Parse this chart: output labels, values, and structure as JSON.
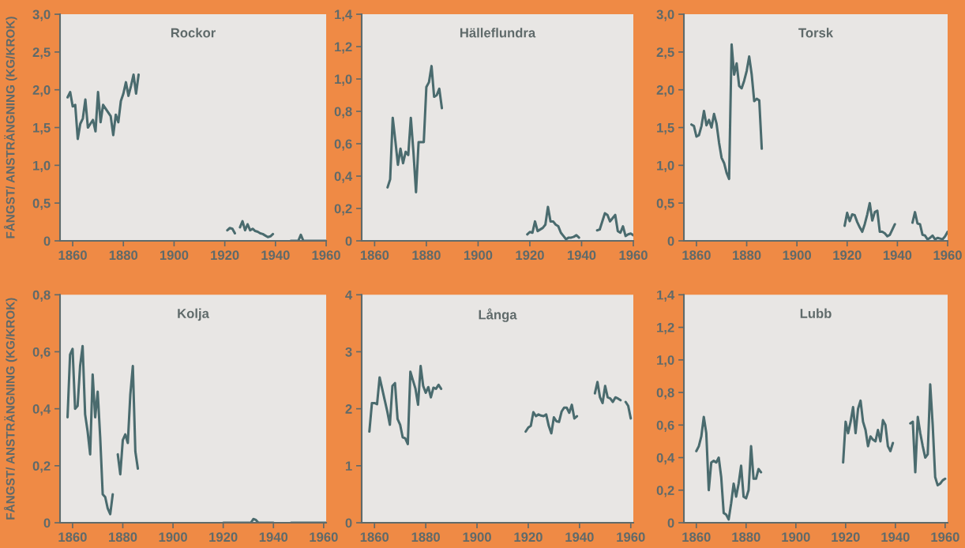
{
  "chart_data": [
    {
      "type": "line",
      "title": "Rockor",
      "ylabel": "FÅNGST/ ANSTRÄNGNING (KG/KROK)",
      "xlim": [
        1855,
        1960
      ],
      "xticks": [
        1860,
        1880,
        1900,
        1920,
        1940,
        1960
      ],
      "ylim": [
        0,
        3
      ],
      "yticks": [
        0,
        {
          "value": 0.5,
          "label": "0,5"
        },
        {
          "value": 1,
          "label": "1,0"
        },
        {
          "value": 1.5,
          "label": "1,5"
        },
        {
          "value": 2,
          "label": "2,0"
        },
        {
          "value": 2.5,
          "label": "2,5"
        },
        {
          "value": 3,
          "label": "3,0"
        }
      ],
      "grid": false,
      "legend": false,
      "series": [
        {
          "color": "#4a6b6e",
          "x": [
            1858,
            1859,
            1860,
            1861,
            1862,
            1863,
            1864,
            1865,
            1866,
            1867,
            1868,
            1869,
            1870,
            1871,
            1872,
            1873,
            1874,
            1875,
            1876,
            1877,
            1878,
            1879,
            1880,
            1881,
            1882,
            1883,
            1884,
            1885,
            1886,
            1900,
            1921,
            1922,
            1923,
            1924,
            1925,
            1926,
            1927,
            1928,
            1929,
            1930,
            1931,
            1932,
            1933,
            1934,
            1935,
            1936,
            1937,
            1938,
            1939,
            1943,
            1946,
            1949,
            1950,
            1951,
            1960
          ],
          "values": [
            1.9,
            1.97,
            1.78,
            1.8,
            1.35,
            1.55,
            1.62,
            1.87,
            1.5,
            1.55,
            1.6,
            1.45,
            1.97,
            1.57,
            1.8,
            1.75,
            1.7,
            1.65,
            1.4,
            1.67,
            1.57,
            1.85,
            1.95,
            2.1,
            1.92,
            2.05,
            2.2,
            1.95,
            2.2,
            null,
            0.14,
            0.17,
            0.16,
            0.1,
            null,
            0.18,
            0.26,
            0.14,
            0.22,
            0.14,
            0.16,
            0.13,
            0.12,
            0.1,
            0.09,
            0.07,
            0.05,
            0.06,
            0.09,
            null,
            0,
            0,
            0.08,
            0,
            0
          ]
        }
      ]
    },
    {
      "type": "line",
      "title": "Hälleflundra",
      "xlim": [
        1855,
        1960
      ],
      "xticks": [
        1860,
        1880,
        1900,
        1920,
        1940,
        1960
      ],
      "ylim": [
        0,
        1.4
      ],
      "yticks": [
        0,
        {
          "value": 0.2,
          "label": "0,2"
        },
        {
          "value": 0.4,
          "label": "0,4"
        },
        {
          "value": 0.6,
          "label": "0,6"
        },
        {
          "value": 0.8,
          "label": "0,8"
        },
        {
          "value": 1,
          "label": "1,0"
        },
        {
          "value": 1.2,
          "label": "1,2"
        },
        {
          "value": 1.4,
          "label": "1,4"
        }
      ],
      "grid": false,
      "legend": false,
      "series": [
        {
          "color": "#4a6b6e",
          "x": [
            1865,
            1866,
            1867,
            1868,
            1869,
            1870,
            1871,
            1872,
            1873,
            1874,
            1875,
            1876,
            1877,
            1878,
            1879,
            1880,
            1881,
            1882,
            1883,
            1884,
            1885,
            1886,
            1900,
            1919,
            1920,
            1921,
            1922,
            1923,
            1924,
            1925,
            1926,
            1927,
            1928,
            1929,
            1930,
            1931,
            1932,
            1933,
            1934,
            1935,
            1936,
            1937,
            1938,
            1939,
            1943,
            1946,
            1947,
            1948,
            1949,
            1950,
            1951,
            1952,
            1953,
            1954,
            1955,
            1956,
            1957,
            1958,
            1959,
            1960
          ],
          "values": [
            0.33,
            0.38,
            0.76,
            0.62,
            0.47,
            0.57,
            0.48,
            0.55,
            0.53,
            0.76,
            0.55,
            0.3,
            0.61,
            0.61,
            0.61,
            0.95,
            0.98,
            1.08,
            0.89,
            0.9,
            0.94,
            0.82,
            null,
            0.04,
            0.055,
            0.05,
            0.12,
            0.06,
            0.07,
            0.08,
            0.1,
            0.21,
            0.12,
            0.12,
            0.1,
            0.09,
            0.05,
            0.03,
            0.01,
            0.02,
            0.02,
            0.025,
            0.035,
            0.02,
            null,
            0.065,
            0.07,
            0.12,
            0.17,
            0.16,
            0.12,
            0.14,
            0.16,
            0.06,
            0.05,
            0.09,
            0.03,
            0.04,
            0.045,
            0.035
          ]
        }
      ]
    },
    {
      "type": "line",
      "title": "Torsk",
      "xlim": [
        1855,
        1960
      ],
      "xticks": [
        1860,
        1880,
        1900,
        1920,
        1940,
        1960
      ],
      "ylim": [
        0,
        3
      ],
      "yticks": [
        0,
        {
          "value": 0.5,
          "label": "0,5"
        },
        {
          "value": 1,
          "label": "1,0"
        },
        {
          "value": 1.5,
          "label": "1,5"
        },
        {
          "value": 2,
          "label": "2,0"
        },
        {
          "value": 2.5,
          "label": "2,5"
        },
        {
          "value": 3,
          "label": "3,0"
        }
      ],
      "grid": false,
      "legend": false,
      "series": [
        {
          "color": "#4a6b6e",
          "x": [
            1858,
            1859,
            1860,
            1861,
            1862,
            1863,
            1864,
            1865,
            1866,
            1867,
            1868,
            1869,
            1870,
            1871,
            1872,
            1873,
            1874,
            1875,
            1876,
            1877,
            1878,
            1879,
            1880,
            1881,
            1882,
            1883,
            1884,
            1885,
            1886,
            1900,
            1919,
            1920,
            1921,
            1922,
            1923,
            1924,
            1925,
            1926,
            1927,
            1928,
            1929,
            1930,
            1931,
            1932,
            1933,
            1934,
            1935,
            1936,
            1937,
            1938,
            1939,
            1943,
            1946,
            1947,
            1948,
            1949,
            1950,
            1951,
            1952,
            1953,
            1954,
            1955,
            1956,
            1957,
            1958,
            1959,
            1960
          ],
          "values": [
            1.54,
            1.52,
            1.38,
            1.4,
            1.52,
            1.72,
            1.53,
            1.6,
            1.5,
            1.68,
            1.55,
            1.3,
            1.1,
            1.03,
            0.9,
            0.82,
            2.6,
            2.2,
            2.35,
            2.05,
            2.02,
            2.12,
            2.25,
            2.44,
            2.2,
            1.85,
            1.88,
            1.86,
            1.22,
            null,
            0.2,
            0.37,
            0.26,
            0.35,
            0.34,
            0.25,
            0.18,
            0.12,
            0.22,
            0.35,
            0.5,
            0.27,
            0.38,
            0.4,
            0.12,
            0.12,
            0.1,
            0.06,
            0.08,
            0.15,
            0.22,
            null,
            0.24,
            0.38,
            0.23,
            0.22,
            0.08,
            0.07,
            0.02,
            0.04,
            0.07,
            0.02,
            0.04,
            0.03,
            0.02,
            0.06,
            0.12
          ]
        }
      ]
    },
    {
      "type": "line",
      "title": "Kolja",
      "ylabel": "FÅNGST/ ANSTRÄNGNING (KG/KROK)",
      "xlim": [
        1855,
        1961
      ],
      "xticks": [
        1860,
        1880,
        1900,
        1920,
        1940,
        1960
      ],
      "ylim": [
        0,
        0.8
      ],
      "yticks": [
        0,
        {
          "value": 0.2,
          "label": "0,2"
        },
        {
          "value": 0.4,
          "label": "0,4"
        },
        {
          "value": 0.6,
          "label": "0,6"
        },
        {
          "value": 0.8,
          "label": "0,8"
        }
      ],
      "grid": false,
      "legend": false,
      "series": [
        {
          "color": "#4a6b6e",
          "x": [
            1858,
            1859,
            1860,
            1861,
            1862,
            1863,
            1864,
            1865,
            1866,
            1867,
            1868,
            1869,
            1870,
            1871,
            1872,
            1873,
            1874,
            1875,
            1876,
            1877,
            1878,
            1879,
            1880,
            1881,
            1882,
            1883,
            1884,
            1885,
            1886,
            1900,
            1920,
            1930,
            1931,
            1932,
            1933,
            1934,
            1940,
            1943,
            1947,
            1961
          ],
          "values": [
            0.37,
            0.59,
            0.61,
            0.4,
            0.41,
            0.55,
            0.62,
            0.38,
            0.32,
            0.24,
            0.52,
            0.37,
            0.46,
            0.3,
            0.1,
            0.09,
            0.05,
            0.03,
            0.1,
            null,
            0.24,
            0.17,
            0.29,
            0.31,
            0.28,
            0.45,
            0.55,
            0.25,
            0.19,
            null,
            0,
            0,
            0,
            0.013,
            0.01,
            0,
            0,
            null,
            0,
            0
          ]
        }
      ]
    },
    {
      "type": "line",
      "title": "Långa",
      "xlim": [
        1855,
        1961
      ],
      "xticks": [
        1860,
        1880,
        1900,
        1920,
        1940,
        1960
      ],
      "ylim": [
        0,
        4
      ],
      "yticks": [
        0,
        1,
        2,
        3,
        4
      ],
      "grid": false,
      "legend": false,
      "series": [
        {
          "color": "#4a6b6e",
          "x": [
            1858,
            1859,
            1860,
            1861,
            1862,
            1863,
            1864,
            1865,
            1866,
            1867,
            1868,
            1869,
            1870,
            1871,
            1872,
            1873,
            1874,
            1875,
            1876,
            1877,
            1878,
            1879,
            1880,
            1881,
            1882,
            1883,
            1884,
            1885,
            1886,
            1900,
            1919,
            1920,
            1921,
            1922,
            1923,
            1924,
            1925,
            1926,
            1927,
            1928,
            1929,
            1930,
            1931,
            1932,
            1933,
            1934,
            1935,
            1936,
            1937,
            1938,
            1939,
            1943,
            1946,
            1947,
            1948,
            1949,
            1950,
            1951,
            1952,
            1953,
            1954,
            1955,
            1956,
            1957,
            1958,
            1959,
            1960
          ],
          "values": [
            1.6,
            2.1,
            2.1,
            2.08,
            2.55,
            2.35,
            2.15,
            1.95,
            1.72,
            2.4,
            2.45,
            1.82,
            1.72,
            1.5,
            1.48,
            1.38,
            2.65,
            2.5,
            2.35,
            2.07,
            2.75,
            2.4,
            2.28,
            2.38,
            2.2,
            2.37,
            2.35,
            2.42,
            2.35,
            null,
            1.6,
            1.67,
            1.7,
            1.94,
            1.87,
            1.9,
            1.88,
            1.87,
            1.9,
            1.7,
            1.57,
            1.85,
            1.78,
            1.77,
            1.95,
            2.02,
            2.02,
            1.93,
            2.07,
            1.83,
            1.87,
            null,
            2.27,
            2.47,
            2.2,
            2.1,
            2.4,
            2.2,
            2.18,
            2.12,
            2.2,
            2.18,
            2.15,
            null,
            2.12,
            2.05,
            1.83
          ]
        }
      ]
    },
    {
      "type": "line",
      "title": "Lubb",
      "xlim": [
        1855,
        1961
      ],
      "xticks": [
        1860,
        1880,
        1900,
        1920,
        1940,
        1960
      ],
      "ylim": [
        0,
        1.4
      ],
      "yticks": [
        0,
        {
          "value": 0.2,
          "label": "0,2"
        },
        {
          "value": 0.4,
          "label": "0,4"
        },
        {
          "value": 0.6,
          "label": "0,6"
        },
        {
          "value": 0.8,
          "label": "0,8"
        },
        {
          "value": 1,
          "label": "1,0"
        },
        {
          "value": 1.2,
          "label": "1,2"
        },
        {
          "value": 1.4,
          "label": "1,4"
        }
      ],
      "grid": false,
      "legend": false,
      "series": [
        {
          "color": "#4a6b6e",
          "x": [
            1860,
            1861,
            1862,
            1863,
            1864,
            1865,
            1866,
            1867,
            1868,
            1869,
            1870,
            1871,
            1872,
            1873,
            1874,
            1875,
            1876,
            1877,
            1878,
            1879,
            1880,
            1881,
            1882,
            1883,
            1884,
            1885,
            1886,
            1900,
            1919,
            1920,
            1921,
            1922,
            1923,
            1924,
            1925,
            1926,
            1927,
            1928,
            1929,
            1930,
            1931,
            1932,
            1933,
            1934,
            1935,
            1936,
            1937,
            1938,
            1939,
            1943,
            1946,
            1947,
            1948,
            1949,
            1950,
            1951,
            1952,
            1953,
            1954,
            1955,
            1956,
            1957,
            1958,
            1959,
            1960
          ],
          "values": [
            0.44,
            0.47,
            0.53,
            0.65,
            0.55,
            0.2,
            0.37,
            0.38,
            0.37,
            0.4,
            0.28,
            0.06,
            0.05,
            0.02,
            0.12,
            0.24,
            0.16,
            0.24,
            0.35,
            0.16,
            0.15,
            0.2,
            0.47,
            0.27,
            0.27,
            0.33,
            0.31,
            null,
            0.37,
            0.62,
            0.55,
            0.62,
            0.71,
            0.55,
            0.7,
            0.75,
            0.62,
            0.57,
            0.47,
            0.53,
            0.51,
            0.5,
            0.57,
            0.5,
            0.63,
            0.6,
            0.47,
            0.44,
            0.49,
            null,
            0.61,
            0.62,
            0.31,
            0.65,
            0.55,
            0.47,
            0.4,
            0.42,
            0.85,
            0.6,
            0.28,
            0.23,
            0.24,
            0.26,
            0.27
          ]
        }
      ]
    }
  ]
}
